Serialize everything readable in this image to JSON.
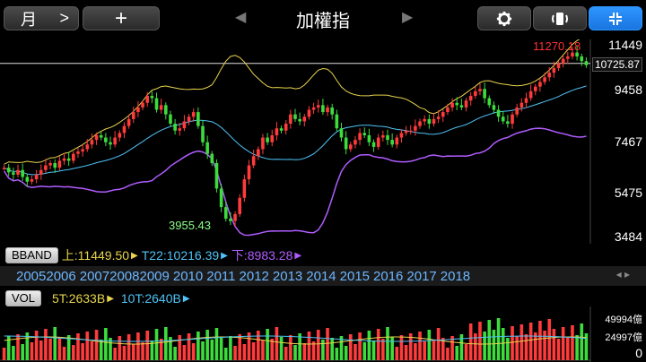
{
  "toolbar": {
    "period_label": "月",
    "period_chevron": ">",
    "add_label": "+",
    "prev_arrow": "◀",
    "next_arrow": "▶",
    "title": "加權指"
  },
  "price_axis": {
    "labels": [
      "11449",
      "9458",
      "7467",
      "5475",
      "3484"
    ],
    "current_price": "10725.87",
    "high_marker": "11270.18",
    "low_marker": "3955.43"
  },
  "bband": {
    "button_label": "BBAND",
    "upper": "上:11449.50",
    "mid": "T22:10216.39",
    "lower": "下:8983.28",
    "colors": {
      "upper": "#e8d44d",
      "mid": "#4fc3f7",
      "lower": "#b05cff"
    }
  },
  "years": [
    "2005",
    "2006",
    "2007",
    "2008",
    "2009",
    "2010",
    "2011",
    "2012",
    "2013",
    "2014",
    "2015",
    "2016",
    "2017",
    "2018"
  ],
  "scroll_control": "◂ ▸",
  "vol": {
    "button_label": "VOL",
    "ma5": "5T:2633B",
    "ma10": "10T:2640B",
    "axis": [
      "49994億",
      "24997億",
      "0"
    ]
  },
  "chart_data": {
    "type": "candlestick",
    "x_range": [
      "2005",
      "2018"
    ],
    "ylim": [
      3484,
      11449
    ],
    "high_label": 11270.18,
    "low_label": 3955.43,
    "last_price": 10725.87,
    "closes": [
      6300,
      6100,
      6000,
      6200,
      5900,
      5700,
      5800,
      6000,
      6200,
      6400,
      6500,
      6300,
      6600,
      6700,
      6600,
      6900,
      7000,
      7100,
      7300,
      7500,
      7700,
      7600,
      7400,
      7300,
      7600,
      7800,
      8100,
      8400,
      8700,
      8900,
      9100,
      9400,
      9300,
      8800,
      9000,
      8600,
      8200,
      7900,
      8000,
      8300,
      8500,
      8700,
      8100,
      7400,
      6900,
      6500,
      5400,
      4600,
      4100,
      4000,
      4300,
      5000,
      5800,
      6400,
      6800,
      7100,
      7600,
      7400,
      7700,
      8000,
      7900,
      8200,
      8600,
      8400,
      8300,
      8500,
      8800,
      8900,
      9000,
      8700,
      8900,
      8600,
      8000,
      7600,
      7100,
      7300,
      7500,
      7800,
      7700,
      7400,
      7200,
      7600,
      7700,
      7500,
      7300,
      7600,
      7800,
      7900,
      7900,
      8100,
      8300,
      8400,
      8200,
      8400,
      8500,
      8700,
      8900,
      9100,
      9000,
      8900,
      9200,
      9400,
      9600,
      9700,
      9300,
      9000,
      8800,
      8500,
      8300,
      8200,
      8600,
      8900,
      9100,
      9300,
      9600,
      9800,
      10000,
      10200,
      10400,
      10600,
      10800,
      11000,
      11100,
      11270,
      11100,
      10900,
      10725
    ]
  }
}
